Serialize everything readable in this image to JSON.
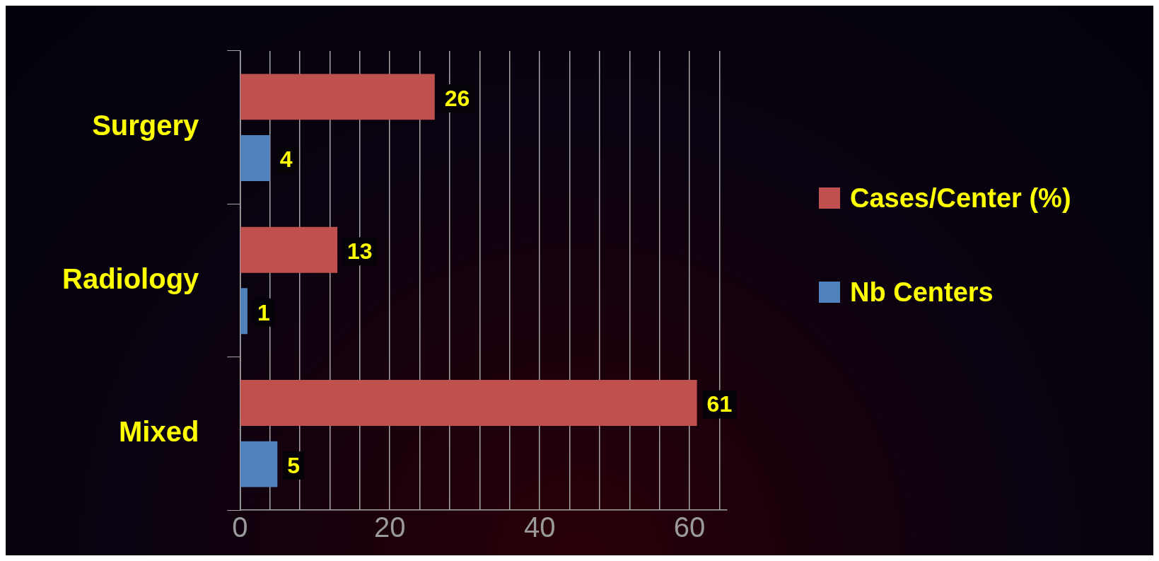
{
  "chart_data": {
    "type": "bar",
    "orientation": "horizontal",
    "categories": [
      "Surgery",
      "Radiology",
      "Mixed"
    ],
    "series": [
      {
        "name": "Cases/Center (%)",
        "color": "#c0504d",
        "values": [
          26,
          13,
          61
        ]
      },
      {
        "name": "Nb Centers",
        "color": "#4f81bd",
        "values": [
          4,
          1,
          5
        ]
      }
    ],
    "xlim": [
      0,
      65
    ],
    "xticks": [
      0,
      {
        "value": 4,
        "label": null
      },
      {
        "value": 8,
        "label": null
      },
      {
        "value": 12,
        "label": null
      },
      {
        "value": 16,
        "label": null
      },
      20,
      {
        "value": 24,
        "label": null
      },
      {
        "value": 28,
        "label": null
      },
      {
        "value": 32,
        "label": null
      },
      {
        "value": 36,
        "label": null
      },
      40,
      {
        "value": 44,
        "label": null
      },
      {
        "value": 48,
        "label": null
      },
      {
        "value": 52,
        "label": null
      },
      {
        "value": 56,
        "label": null
      },
      60,
      {
        "value": 64,
        "label": null
      }
    ],
    "grid": "x",
    "legend": "right",
    "data_labels": true
  }
}
